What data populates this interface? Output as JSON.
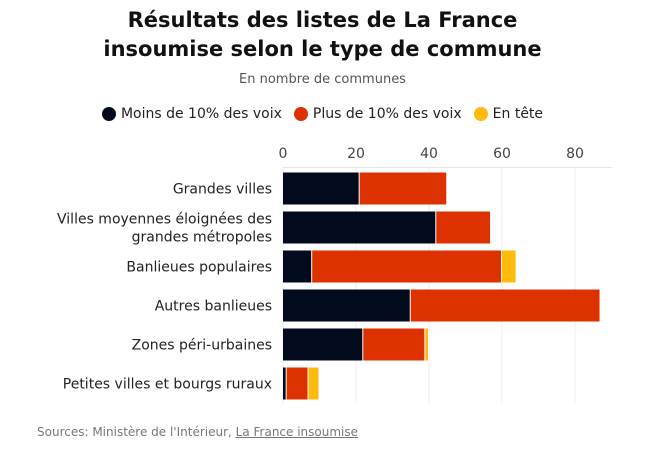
{
  "chart_data": {
    "type": "bar",
    "orientation": "horizontal",
    "stacked": true,
    "title": "Résultats des listes de La France insoumise selon le type de commune",
    "title_lines": [
      "Résultats des listes de La France",
      "insoumise selon le type de commune"
    ],
    "subtitle": "En nombre de communes",
    "categories": [
      [
        "Grandes villes"
      ],
      [
        "Villes moyennes éloignées des",
        "grandes métropoles"
      ],
      [
        "Banlieues populaires"
      ],
      [
        "Autres banlieues"
      ],
      [
        "Zones péri-urbaines"
      ],
      [
        "Petites villes et bourgs ruraux"
      ]
    ],
    "series": [
      {
        "name": "Moins de 10% des voix",
        "color": "#020a1e",
        "values": [
          21,
          42,
          8,
          35,
          22,
          1
        ]
      },
      {
        "name": "Plus de 10% des voix",
        "color": "#dd3100",
        "values": [
          24,
          15,
          52,
          52,
          17,
          6
        ]
      },
      {
        "name": "En tête",
        "color": "#ffbb0c",
        "values": [
          0,
          0,
          4,
          0,
          1,
          3
        ]
      }
    ],
    "xlim": [
      0,
      90
    ],
    "xticks": [
      0,
      20,
      40,
      60,
      80
    ],
    "grid": true,
    "legend_position": "top-center",
    "source_prefix": "Sources: Ministère de l'Intérieur, ",
    "source_link": "La France insoumise"
  }
}
